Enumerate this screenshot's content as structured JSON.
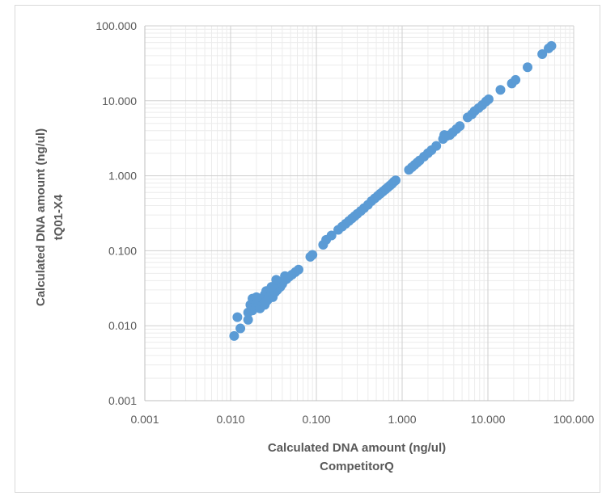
{
  "chart_data": {
    "type": "scatter",
    "xscale": "log",
    "yscale": "log",
    "xlim": [
      0.001,
      100
    ],
    "ylim": [
      0.001,
      100
    ],
    "xticks": [
      "0.001",
      "0.010",
      "0.100",
      "1.000",
      "10.000",
      "100.000"
    ],
    "yticks": [
      "0.001",
      "0.010",
      "0.100",
      "1.000",
      "10.000",
      "100.000"
    ],
    "xlabel": [
      "Calculated DNA amount (ng/ul)",
      "CompetitorQ"
    ],
    "ylabel": [
      "Calculated DNA amount (ng/ul)",
      "tQ01-X4"
    ],
    "grid": "major and minor",
    "marker_color": "#5b9bd5",
    "points": [
      [
        0.011,
        0.0073
      ],
      [
        0.013,
        0.0092
      ],
      [
        0.012,
        0.013
      ],
      [
        0.016,
        0.012
      ],
      [
        0.016,
        0.015
      ],
      [
        0.018,
        0.016
      ],
      [
        0.017,
        0.019
      ],
      [
        0.019,
        0.022
      ],
      [
        0.02,
        0.018
      ],
      [
        0.021,
        0.02
      ],
      [
        0.022,
        0.017
      ],
      [
        0.023,
        0.021
      ],
      [
        0.024,
        0.023
      ],
      [
        0.025,
        0.019
      ],
      [
        0.025,
        0.026
      ],
      [
        0.026,
        0.029
      ],
      [
        0.027,
        0.022
      ],
      [
        0.028,
        0.025
      ],
      [
        0.029,
        0.03
      ],
      [
        0.03,
        0.027
      ],
      [
        0.031,
        0.024
      ],
      [
        0.032,
        0.031
      ],
      [
        0.033,
        0.028
      ],
      [
        0.034,
        0.034
      ],
      [
        0.035,
        0.03
      ],
      [
        0.036,
        0.038
      ],
      [
        0.038,
        0.033
      ],
      [
        0.04,
        0.036
      ],
      [
        0.042,
        0.04
      ],
      [
        0.045,
        0.042
      ],
      [
        0.048,
        0.045
      ],
      [
        0.052,
        0.048
      ],
      [
        0.057,
        0.052
      ],
      [
        0.062,
        0.056
      ],
      [
        0.018,
        0.023
      ],
      [
        0.02,
        0.024
      ],
      [
        0.026,
        0.021
      ],
      [
        0.03,
        0.033
      ],
      [
        0.034,
        0.041
      ],
      [
        0.043,
        0.046
      ],
      [
        0.085,
        0.083
      ],
      [
        0.09,
        0.088
      ],
      [
        0.12,
        0.12
      ],
      [
        0.13,
        0.14
      ],
      [
        0.15,
        0.16
      ],
      [
        0.18,
        0.19
      ],
      [
        0.2,
        0.21
      ],
      [
        0.22,
        0.23
      ],
      [
        0.24,
        0.25
      ],
      [
        0.26,
        0.27
      ],
      [
        0.28,
        0.29
      ],
      [
        0.3,
        0.31
      ],
      [
        0.33,
        0.34
      ],
      [
        0.36,
        0.37
      ],
      [
        0.4,
        0.41
      ],
      [
        0.44,
        0.46
      ],
      [
        0.48,
        0.5
      ],
      [
        0.52,
        0.54
      ],
      [
        0.56,
        0.58
      ],
      [
        0.6,
        0.62
      ],
      [
        0.64,
        0.66
      ],
      [
        0.68,
        0.7
      ],
      [
        0.72,
        0.74
      ],
      [
        0.76,
        0.78
      ],
      [
        0.8,
        0.83
      ],
      [
        0.84,
        0.87
      ],
      [
        1.2,
        1.2
      ],
      [
        1.3,
        1.3
      ],
      [
        1.4,
        1.4
      ],
      [
        1.5,
        1.5
      ],
      [
        1.6,
        1.6
      ],
      [
        1.8,
        1.8
      ],
      [
        2.0,
        2.0
      ],
      [
        2.2,
        2.2
      ],
      [
        2.5,
        2.5
      ],
      [
        3.0,
        3.1
      ],
      [
        3.1,
        3.5
      ],
      [
        3.3,
        3.4
      ],
      [
        3.6,
        3.5
      ],
      [
        3.9,
        3.8
      ],
      [
        4.3,
        4.2
      ],
      [
        4.7,
        4.6
      ],
      [
        5.8,
        6.0
      ],
      [
        6.5,
        6.6
      ],
      [
        7.0,
        7.3
      ],
      [
        7.8,
        8.0
      ],
      [
        8.6,
        8.8
      ],
      [
        9.5,
        9.8
      ],
      [
        10.2,
        10.5
      ],
      [
        14,
        14
      ],
      [
        19,
        17
      ],
      [
        21,
        19
      ],
      [
        29,
        28
      ],
      [
        43,
        42
      ],
      [
        51,
        50
      ],
      [
        55,
        54
      ]
    ]
  }
}
